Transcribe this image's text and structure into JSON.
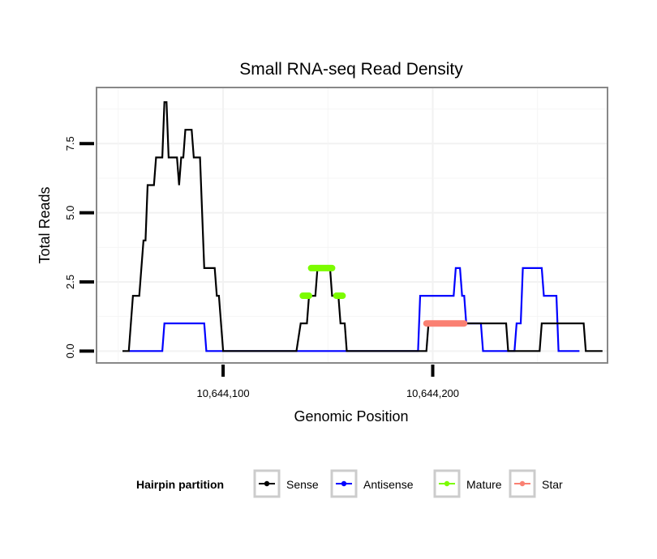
{
  "chart_data": {
    "type": "line",
    "title": "Small RNA-seq Read Density",
    "xlabel": "Genomic Position",
    "ylabel": "Total Reads",
    "xlim": [
      10644040,
      10644283
    ],
    "ylim": [
      -0.4,
      9.5
    ],
    "x_ticks": [
      10644100,
      10644200
    ],
    "x_tick_labels": [
      "10,644,100",
      "10,644,200"
    ],
    "y_ticks": [
      0,
      2.5,
      5,
      7.5
    ],
    "y_tick_labels": [
      "0.0",
      "2.5",
      "5.0",
      "7.5"
    ],
    "grid": true,
    "legend": {
      "title": "Hairpin partition",
      "position": "bottom",
      "entries": [
        {
          "name": "Sense",
          "color": "#000000"
        },
        {
          "name": "Antisense",
          "color": "#0000ff"
        },
        {
          "name": "Mature",
          "color": "#7cfc00"
        },
        {
          "name": "Star",
          "color": "#fa8072"
        }
      ]
    },
    "series": [
      {
        "name": "Sense",
        "color": "#000000",
        "points": [
          [
            10644052,
            0
          ],
          [
            10644055,
            0
          ],
          [
            10644057,
            2
          ],
          [
            10644060,
            2
          ],
          [
            10644062,
            4
          ],
          [
            10644063,
            4
          ],
          [
            10644064,
            6
          ],
          [
            10644067,
            6
          ],
          [
            10644068,
            7
          ],
          [
            10644071,
            7
          ],
          [
            10644072,
            9
          ],
          [
            10644073,
            9
          ],
          [
            10644074,
            7
          ],
          [
            10644078,
            7
          ],
          [
            10644079,
            6
          ],
          [
            10644080,
            7
          ],
          [
            10644081,
            7
          ],
          [
            10644082,
            8
          ],
          [
            10644085,
            8
          ],
          [
            10644086,
            7
          ],
          [
            10644089,
            7
          ],
          [
            10644091,
            3
          ],
          [
            10644096,
            3
          ],
          [
            10644097,
            2
          ],
          [
            10644098,
            2
          ],
          [
            10644100,
            0
          ],
          [
            10644101,
            0
          ],
          [
            10644103,
            0
          ],
          [
            10644117,
            0
          ],
          [
            10644135,
            0
          ],
          [
            10644137,
            1
          ],
          [
            10644139,
            1
          ],
          [
            10644140,
            1
          ],
          [
            10644141,
            2
          ],
          [
            10644142,
            2
          ],
          [
            10644144,
            2
          ],
          [
            10644145,
            3
          ],
          [
            10644151,
            3
          ],
          [
            10644152,
            2
          ],
          [
            10644155,
            2
          ],
          [
            10644156,
            1
          ],
          [
            10644158,
            1
          ],
          [
            10644159,
            0
          ],
          [
            10644194,
            0
          ],
          [
            10644197,
            0
          ],
          [
            10644198,
            1
          ],
          [
            10644230,
            1
          ],
          [
            10644235,
            1
          ],
          [
            10644236,
            0
          ],
          [
            10644245,
            0
          ],
          [
            10644251,
            0
          ],
          [
            10644252,
            1
          ],
          [
            10644272,
            1
          ],
          [
            10644273,
            0
          ],
          [
            10644281,
            0
          ]
        ]
      },
      {
        "name": "Antisense",
        "color": "#0000ff",
        "points": [
          [
            10644055,
            0
          ],
          [
            10644058,
            0
          ],
          [
            10644071,
            0
          ],
          [
            10644072,
            1
          ],
          [
            10644091,
            1
          ],
          [
            10644092,
            0
          ],
          [
            10644101,
            0
          ],
          [
            10644135,
            0
          ],
          [
            10644159,
            0
          ],
          [
            10644193,
            0
          ],
          [
            10644194,
            2
          ],
          [
            10644210,
            2
          ],
          [
            10644211,
            3
          ],
          [
            10644213,
            3
          ],
          [
            10644214,
            2
          ],
          [
            10644215,
            2
          ],
          [
            10644216,
            1
          ],
          [
            10644223,
            1
          ],
          [
            10644224,
            0
          ],
          [
            10644239,
            0
          ],
          [
            10644240,
            1
          ],
          [
            10644242,
            1
          ],
          [
            10644243,
            3
          ],
          [
            10644252,
            3
          ],
          [
            10644253,
            2
          ],
          [
            10644259,
            2
          ],
          [
            10644260,
            0
          ],
          [
            10644270,
            0
          ]
        ]
      },
      {
        "name": "Mature",
        "color": "#7cfc00",
        "segments": [
          [
            [
              10644138,
              2
            ],
            [
              10644141,
              2
            ]
          ],
          [
            [
              10644142,
              3
            ],
            [
              10644152,
              3
            ]
          ],
          [
            [
              10644154,
              2
            ],
            [
              10644157,
              2
            ]
          ]
        ]
      },
      {
        "name": "Star",
        "color": "#fa8072",
        "segments": [
          [
            [
              10644197,
              1
            ],
            [
              10644215,
              1
            ]
          ]
        ]
      }
    ]
  }
}
